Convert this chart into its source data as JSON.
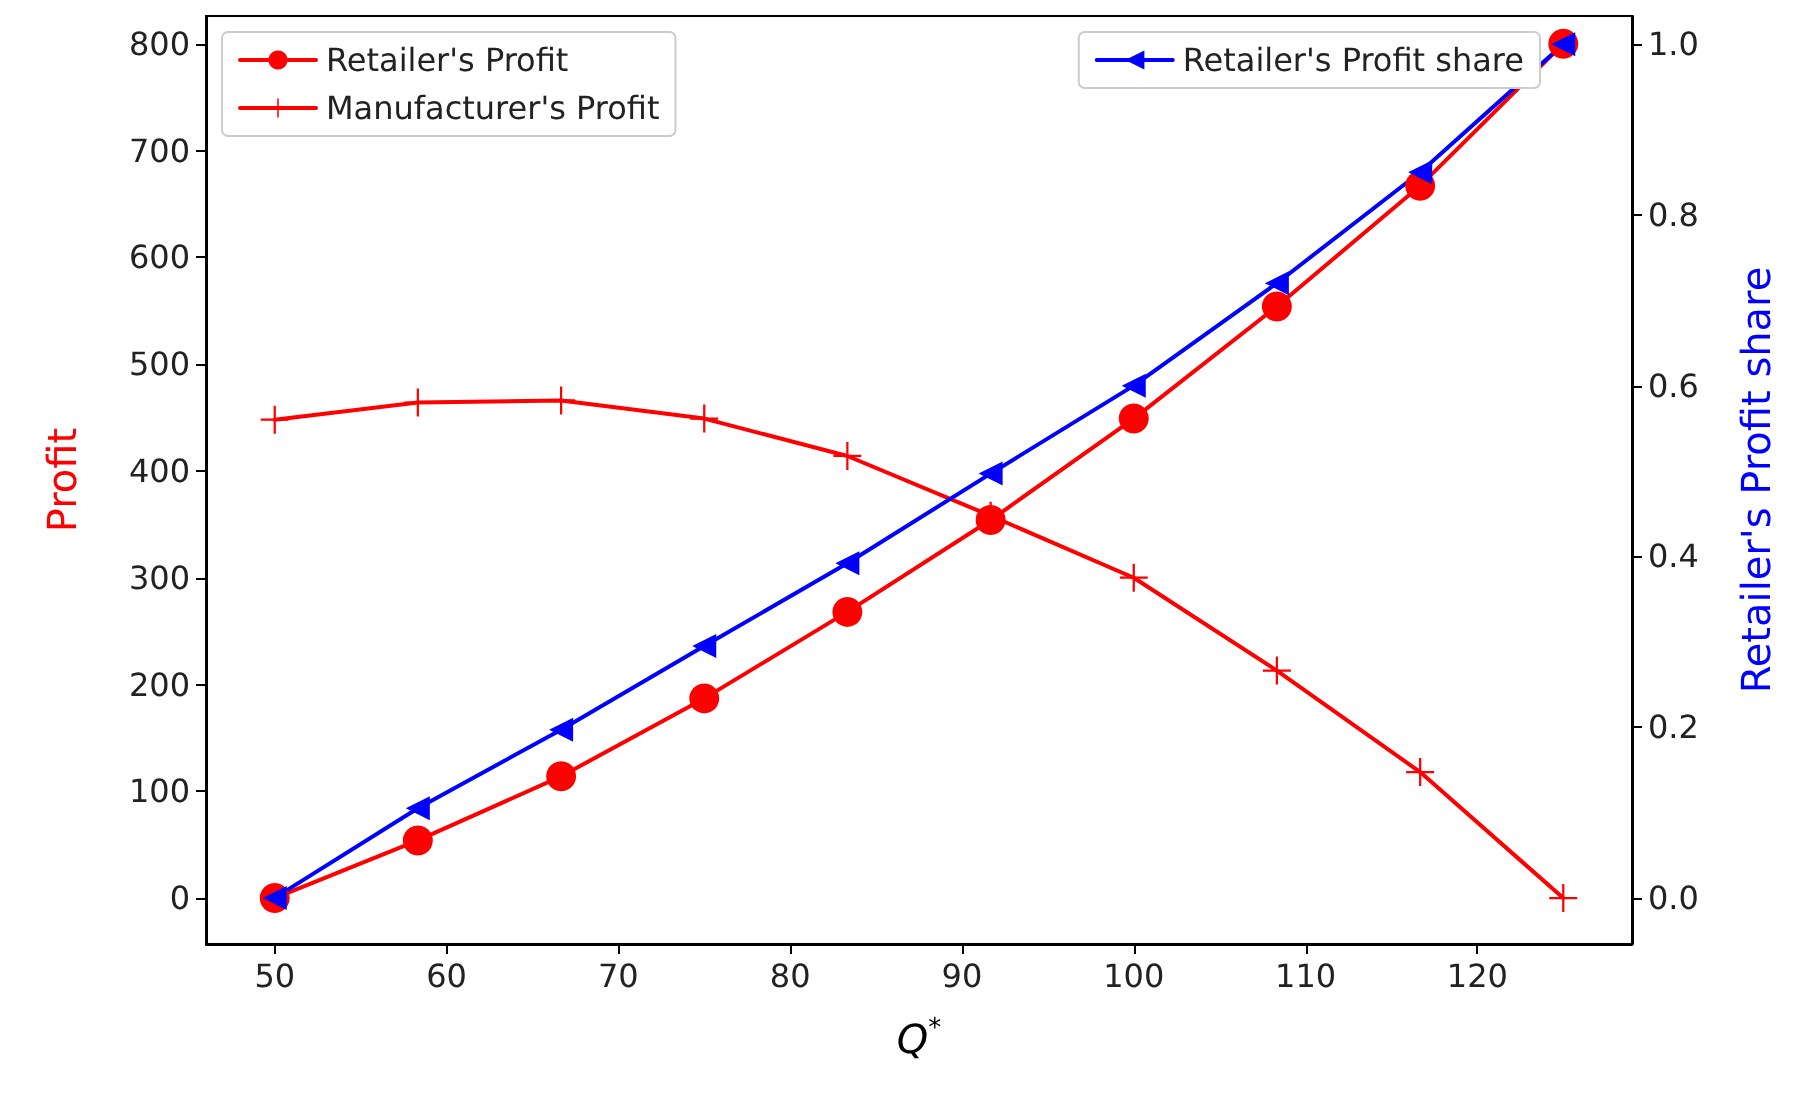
{
  "chart_data": {
    "type": "line",
    "xlabel": "Q$^{*}$",
    "ylabel": "Profit",
    "y2label": "Retailer's Profit share",
    "x": [
      50,
      58.33,
      66.67,
      75,
      83.33,
      91.67,
      100,
      108.33,
      116.67,
      125
    ],
    "series": [
      {
        "name": "Retailer's Profit",
        "color": "#ff0000",
        "marker": "circle",
        "values": [
          0,
          54,
          114,
          187,
          268,
          354,
          449,
          554,
          667,
          800
        ]
      },
      {
        "name": "Manufacturer's Profit",
        "color": "#ff0000",
        "marker": "cross",
        "values": [
          448,
          464,
          466,
          449,
          414,
          358,
          300,
          213,
          118,
          0
        ]
      },
      {
        "name": "Retailer's Profit share",
        "color": "#0000ff",
        "marker": "triangle",
        "axis": "y2",
        "values": [
          0,
          0.105,
          0.197,
          0.295,
          0.392,
          0.497,
          0.6,
          0.72,
          0.85,
          1.0
        ]
      }
    ],
    "xlim": [
      46,
      129
    ],
    "xticks": [
      50,
      60,
      70,
      80,
      90,
      100,
      110,
      120
    ],
    "ylim": [
      -43,
      826
    ],
    "yticks": [
      0,
      100,
      200,
      300,
      400,
      500,
      600,
      700,
      800
    ],
    "y2lim": [
      -0.054,
      1.033
    ],
    "y2ticks": [
      {
        "value": 0,
        "label": "0.0"
      },
      {
        "value": 0.2,
        "label": "0.2"
      },
      {
        "value": 0.4,
        "label": "0.4"
      },
      {
        "value": 0.6,
        "label": "0.6"
      },
      {
        "value": 0.8,
        "label": "0.8"
      },
      {
        "value": 1,
        "label": "1.0"
      }
    ],
    "legend": "top",
    "grid": false,
    "line_style": "solid"
  }
}
